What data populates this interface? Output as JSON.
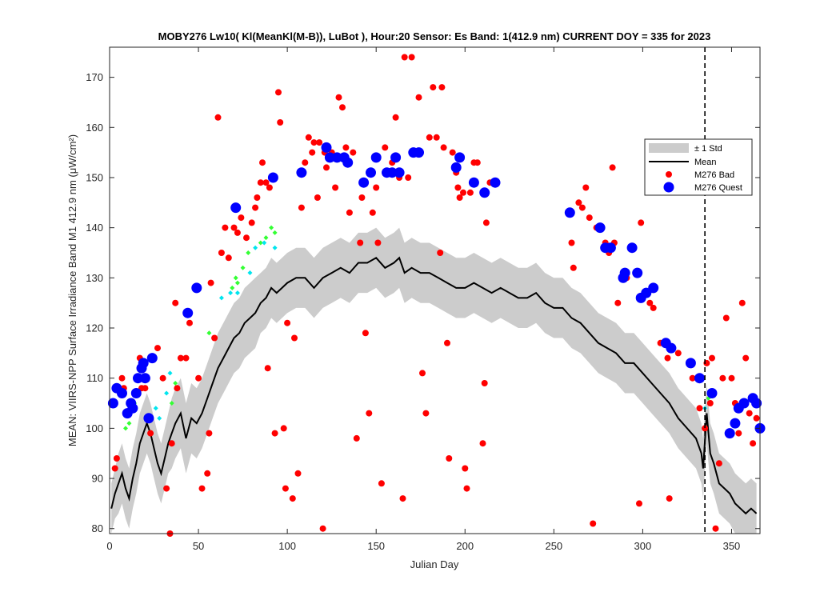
{
  "chart_data": {
    "type": "scatter",
    "title": "MOBY276   Lw10( Kl(MeanKl(M-B)), LuBot ),    Hour:20 Sensor: Es Band: 1(412.9 nm)   CURRENT DOY = 335 for 2023",
    "xlabel": "Julian Day",
    "ylabel": "MEAN: VIIRS-NPP Surface Irradiance Band M1 412.9 nm (μW/cm²)",
    "xlim": [
      0,
      366
    ],
    "ylim": [
      79,
      176
    ],
    "x_ticks": [
      0,
      50,
      100,
      150,
      200,
      250,
      300,
      350
    ],
    "y_ticks": [
      80,
      90,
      100,
      110,
      120,
      130,
      140,
      150,
      160,
      170
    ],
    "current_doy": 335,
    "grid": false,
    "legend_position": "right",
    "legend": [
      {
        "label": "± 1 Std",
        "kind": "patch",
        "color": "#cccccc"
      },
      {
        "label": "Mean",
        "kind": "line",
        "color": "#000000"
      },
      {
        "label": "M276 Bad",
        "kind": "marker",
        "color": "#ff0000"
      },
      {
        "label": "M276 Quest",
        "kind": "marker",
        "color": "#0000ff"
      }
    ],
    "mean_curve": {
      "x": [
        1,
        3,
        5,
        7,
        9,
        11,
        13,
        15,
        17,
        19,
        21,
        23,
        25,
        27,
        29,
        31,
        33,
        35,
        37,
        40,
        43,
        46,
        49,
        52,
        55,
        58,
        61,
        64,
        67,
        70,
        73,
        76,
        79,
        82,
        85,
        88,
        91,
        94,
        97,
        100,
        105,
        110,
        115,
        120,
        125,
        130,
        135,
        140,
        145,
        150,
        155,
        160,
        163,
        166,
        170,
        175,
        180,
        185,
        190,
        195,
        200,
        205,
        210,
        215,
        220,
        225,
        230,
        235,
        240,
        245,
        250,
        255,
        260,
        265,
        270,
        275,
        280,
        285,
        290,
        295,
        300,
        305,
        310,
        315,
        320,
        325,
        330,
        333,
        334,
        336,
        338,
        340,
        343,
        346,
        349,
        352,
        355,
        358,
        361,
        364
      ],
      "y": [
        84,
        87,
        89,
        91,
        88,
        86,
        90,
        93,
        97,
        99,
        101,
        99,
        96,
        93,
        91,
        94,
        97,
        99,
        101,
        103,
        98,
        102,
        101,
        103,
        106,
        109,
        112,
        114,
        116,
        118,
        119,
        121,
        122,
        123,
        125,
        126,
        128,
        127,
        128,
        129,
        130,
        130,
        128,
        130,
        131,
        132,
        131,
        133,
        133,
        134,
        132,
        133,
        134,
        131,
        132,
        131,
        131,
        130,
        129,
        128,
        128,
        129,
        128,
        127,
        128,
        127,
        126,
        126,
        127,
        125,
        124,
        124,
        122,
        121,
        119,
        117,
        116,
        115,
        113,
        113,
        111,
        109,
        107,
        105,
        102,
        100,
        98,
        95,
        92,
        103,
        95,
        93,
        89,
        88,
        87,
        85,
        84,
        83,
        84,
        83
      ],
      "std": [
        5,
        5,
        6,
        6,
        6,
        6,
        6,
        6,
        6,
        6,
        6,
        6,
        6,
        6,
        6,
        6,
        6,
        7,
        7,
        7,
        7,
        7,
        7,
        7,
        7,
        7,
        7,
        7,
        7,
        7,
        7,
        7,
        7,
        7,
        6,
        6,
        6,
        6,
        6,
        6,
        6,
        6,
        6,
        6,
        6,
        6,
        6,
        6,
        6,
        6,
        6,
        6,
        6,
        6,
        6,
        6,
        6,
        6,
        6,
        6,
        6,
        6,
        6,
        6,
        6,
        6,
        6,
        6,
        6,
        6,
        6,
        6,
        6,
        6,
        6,
        6,
        6,
        6,
        6,
        6,
        6,
        6,
        6,
        6,
        6,
        6,
        6,
        6,
        6,
        6,
        6,
        6,
        6,
        6,
        6,
        6,
        6,
        6,
        6,
        6
      ]
    },
    "series": [
      {
        "name": "M276 Bad",
        "color": "#ff0000",
        "points": [
          [
            3,
            92
          ],
          [
            4,
            94
          ],
          [
            5,
            108
          ],
          [
            7,
            110
          ],
          [
            8,
            108
          ],
          [
            15,
            110
          ],
          [
            17,
            114
          ],
          [
            18,
            108
          ],
          [
            20,
            108
          ],
          [
            23,
            99
          ],
          [
            27,
            116
          ],
          [
            30,
            110
          ],
          [
            32,
            88
          ],
          [
            34,
            79
          ],
          [
            35,
            97
          ],
          [
            37,
            125
          ],
          [
            38,
            108
          ],
          [
            40,
            114
          ],
          [
            43,
            114
          ],
          [
            45,
            121
          ],
          [
            50,
            110
          ],
          [
            52,
            88
          ],
          [
            55,
            91
          ],
          [
            56,
            99
          ],
          [
            57,
            129
          ],
          [
            59,
            118
          ],
          [
            61,
            162
          ],
          [
            63,
            135
          ],
          [
            65,
            140
          ],
          [
            67,
            134
          ],
          [
            70,
            140
          ],
          [
            72,
            139
          ],
          [
            74,
            142
          ],
          [
            77,
            138
          ],
          [
            80,
            141
          ],
          [
            82,
            144
          ],
          [
            83,
            146
          ],
          [
            85,
            149
          ],
          [
            86,
            153
          ],
          [
            88,
            149
          ],
          [
            89,
            112
          ],
          [
            90,
            148
          ],
          [
            93,
            99
          ],
          [
            95,
            167
          ],
          [
            96,
            161
          ],
          [
            98,
            100
          ],
          [
            99,
            88
          ],
          [
            100,
            121
          ],
          [
            103,
            86
          ],
          [
            104,
            118
          ],
          [
            106,
            91
          ],
          [
            108,
            144
          ],
          [
            110,
            153
          ],
          [
            112,
            158
          ],
          [
            114,
            155
          ],
          [
            115,
            157
          ],
          [
            117,
            146
          ],
          [
            118,
            157
          ],
          [
            120,
            80
          ],
          [
            121,
            155
          ],
          [
            122,
            152
          ],
          [
            125,
            155
          ],
          [
            127,
            148
          ],
          [
            129,
            166
          ],
          [
            131,
            164
          ],
          [
            133,
            156
          ],
          [
            135,
            143
          ],
          [
            137,
            155
          ],
          [
            139,
            98
          ],
          [
            141,
            137
          ],
          [
            142,
            146
          ],
          [
            144,
            119
          ],
          [
            146,
            103
          ],
          [
            148,
            143
          ],
          [
            150,
            148
          ],
          [
            151,
            137
          ],
          [
            153,
            89
          ],
          [
            155,
            156
          ],
          [
            157,
            151
          ],
          [
            159,
            153
          ],
          [
            161,
            162
          ],
          [
            163,
            150
          ],
          [
            165,
            86
          ],
          [
            166,
            174
          ],
          [
            168,
            150
          ],
          [
            170,
            174
          ],
          [
            174,
            166
          ],
          [
            176,
            111
          ],
          [
            178,
            103
          ],
          [
            180,
            158
          ],
          [
            182,
            168
          ],
          [
            184,
            158
          ],
          [
            186,
            135
          ],
          [
            187,
            168
          ],
          [
            188,
            156
          ],
          [
            190,
            117
          ],
          [
            191,
            94
          ],
          [
            193,
            155
          ],
          [
            195,
            151
          ],
          [
            196,
            148
          ],
          [
            197,
            146
          ],
          [
            199,
            147
          ],
          [
            200,
            92
          ],
          [
            201,
            88
          ],
          [
            203,
            147
          ],
          [
            205,
            153
          ],
          [
            207,
            153
          ],
          [
            210,
            97
          ],
          [
            211,
            109
          ],
          [
            212,
            141
          ],
          [
            214,
            149
          ],
          [
            260,
            137
          ],
          [
            261,
            132
          ],
          [
            264,
            145
          ],
          [
            266,
            144
          ],
          [
            268,
            148
          ],
          [
            270,
            142
          ],
          [
            272,
            81
          ],
          [
            274,
            140
          ],
          [
            279,
            137
          ],
          [
            281,
            135
          ],
          [
            283,
            152
          ],
          [
            284,
            137
          ],
          [
            286,
            125
          ],
          [
            291,
            130
          ],
          [
            298,
            85
          ],
          [
            299,
            141
          ],
          [
            304,
            125
          ],
          [
            306,
            124
          ],
          [
            310,
            117
          ],
          [
            314,
            114
          ],
          [
            315,
            86
          ],
          [
            320,
            115
          ],
          [
            328,
            110
          ],
          [
            332,
            104
          ],
          [
            335,
            100
          ],
          [
            336,
            113
          ],
          [
            338,
            105
          ],
          [
            339,
            114
          ],
          [
            341,
            80
          ],
          [
            343,
            93
          ],
          [
            345,
            110
          ],
          [
            347,
            122
          ],
          [
            350,
            110
          ],
          [
            352,
            105
          ],
          [
            354,
            99
          ],
          [
            356,
            125
          ],
          [
            358,
            114
          ],
          [
            360,
            103
          ],
          [
            362,
            97
          ],
          [
            364,
            102
          ]
        ]
      },
      {
        "name": "M276 Quest",
        "color": "#0000ff",
        "points": [
          [
            2,
            105
          ],
          [
            4,
            108
          ],
          [
            7,
            107
          ],
          [
            10,
            103
          ],
          [
            12,
            105
          ],
          [
            13,
            104
          ],
          [
            15,
            107
          ],
          [
            16,
            110
          ],
          [
            18,
            112
          ],
          [
            19,
            113
          ],
          [
            20,
            110
          ],
          [
            22,
            102
          ],
          [
            24,
            114
          ],
          [
            44,
            123
          ],
          [
            49,
            128
          ],
          [
            71,
            144
          ],
          [
            92,
            150
          ],
          [
            108,
            151
          ],
          [
            122,
            156
          ],
          [
            124,
            154
          ],
          [
            128,
            154
          ],
          [
            132,
            154
          ],
          [
            134,
            153
          ],
          [
            143,
            149
          ],
          [
            147,
            151
          ],
          [
            150,
            154
          ],
          [
            156,
            151
          ],
          [
            159,
            151
          ],
          [
            161,
            154
          ],
          [
            163,
            151
          ],
          [
            171,
            155
          ],
          [
            174,
            155
          ],
          [
            195,
            152
          ],
          [
            197,
            154
          ],
          [
            205,
            149
          ],
          [
            211,
            147
          ],
          [
            217,
            149
          ],
          [
            259,
            143
          ],
          [
            276,
            140
          ],
          [
            279,
            136
          ],
          [
            282,
            136
          ],
          [
            289,
            130
          ],
          [
            290,
            131
          ],
          [
            294,
            136
          ],
          [
            297,
            131
          ],
          [
            299,
            126
          ],
          [
            302,
            127
          ],
          [
            306,
            128
          ],
          [
            313,
            117
          ],
          [
            316,
            116
          ],
          [
            327,
            113
          ],
          [
            332,
            110
          ],
          [
            339,
            107
          ],
          [
            349,
            99
          ],
          [
            352,
            101
          ],
          [
            354,
            104
          ],
          [
            357,
            105
          ],
          [
            362,
            106
          ],
          [
            364,
            105
          ],
          [
            366,
            100
          ]
        ]
      },
      {
        "name": "",
        "color": "#33ff33",
        "points": [
          [
            9,
            100
          ],
          [
            11,
            101
          ],
          [
            14,
            105
          ],
          [
            35,
            105
          ],
          [
            37,
            109
          ],
          [
            56,
            119
          ],
          [
            69,
            128
          ],
          [
            71,
            130
          ],
          [
            72,
            129
          ],
          [
            75,
            132
          ],
          [
            78,
            135
          ],
          [
            85,
            137
          ],
          [
            88,
            138
          ],
          [
            91,
            140
          ],
          [
            93,
            139
          ],
          [
            337,
            106
          ]
        ]
      },
      {
        "name": "",
        "color": "#00e5ee",
        "points": [
          [
            26,
            104
          ],
          [
            28,
            102
          ],
          [
            32,
            107
          ],
          [
            34,
            111
          ],
          [
            63,
            126
          ],
          [
            68,
            127
          ],
          [
            72,
            127
          ],
          [
            79,
            131
          ],
          [
            82,
            136
          ],
          [
            87,
            137
          ],
          [
            93,
            136
          ],
          [
            335,
            104
          ]
        ]
      }
    ]
  }
}
